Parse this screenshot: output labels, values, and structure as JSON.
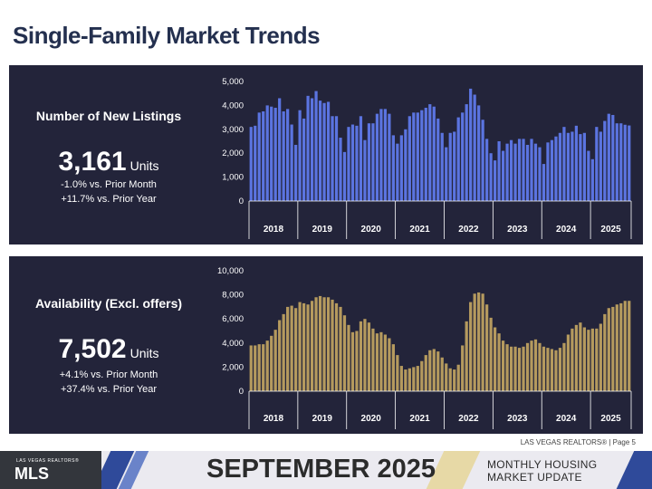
{
  "page_title": "Single-Family Market Trends",
  "panels": {
    "listings": {
      "label": "Number of New Listings",
      "value": "3,161",
      "unit": "Units",
      "change_month": "-1.0% vs. Prior Month",
      "change_year": "+11.7% vs. Prior Year"
    },
    "availability": {
      "label": "Availability (Excl. offers)",
      "value": "7,502",
      "unit": "Units",
      "change_month": "+4.1% vs. Prior Month",
      "change_year": "+37.4% vs. Prior Year"
    }
  },
  "footer": {
    "credit": "LAS VEGAS REALTORS® | Page 5",
    "logo_small": "LAS VEGAS REALTORS®",
    "logo_text": "MLS",
    "month": "SEPTEMBER 2025",
    "update_line1": "MONTHLY HOUSING",
    "update_line2": "MARKET UPDATE"
  },
  "colors": {
    "panel_bg": "#23243a",
    "listings_bar": "#5b74e0",
    "availability_bar": "#b59a5e",
    "title": "#24304f"
  },
  "chart_data": [
    {
      "type": "bar",
      "title": "Number of New Listings",
      "ylim": [
        0,
        5000
      ],
      "yticks": [
        "5,000",
        "4,000",
        "3,000",
        "2,000",
        "1,000",
        "0"
      ],
      "ytick_values": [
        5000,
        4000,
        3000,
        2000,
        1000,
        0
      ],
      "year_labels": [
        "2018",
        "2019",
        "2020",
        "2021",
        "2022",
        "2023",
        "2024",
        "2025"
      ],
      "values": [
        3100,
        3150,
        3700,
        3750,
        4000,
        3950,
        3900,
        4300,
        3750,
        3850,
        3200,
        2350,
        3800,
        3450,
        4400,
        4300,
        4600,
        4200,
        4100,
        4150,
        3550,
        3550,
        2650,
        2050,
        3100,
        3200,
        3150,
        3550,
        2550,
        3250,
        3250,
        3650,
        3850,
        3850,
        3650,
        2750,
        2400,
        2750,
        3000,
        3550,
        3700,
        3700,
        3800,
        3900,
        4050,
        3950,
        3450,
        2850,
        2250,
        2850,
        2900,
        3500,
        3700,
        4050,
        4700,
        4450,
        4000,
        3400,
        2600,
        2000,
        1700,
        2500,
        2100,
        2400,
        2550,
        2400,
        2600,
        2600,
        2350,
        2600,
        2400,
        2250,
        1550,
        2450,
        2550,
        2700,
        2850,
        3100,
        2850,
        2900,
        3150,
        2800,
        2850,
        2100,
        1750,
        3100,
        2900,
        3350,
        3650,
        3600,
        3250,
        3250,
        3190,
        3161
      ]
    },
    {
      "type": "bar",
      "title": "Availability (Excl. offers)",
      "ylim": [
        0,
        10000
      ],
      "yticks": [
        "10,000",
        "8,000",
        "6,000",
        "4,000",
        "2,000",
        "0"
      ],
      "ytick_values": [
        10000,
        8000,
        6000,
        4000,
        2000,
        0
      ],
      "year_labels": [
        "2018",
        "2019",
        "2020",
        "2021",
        "2022",
        "2023",
        "2024",
        "2025"
      ],
      "values": [
        3800,
        3800,
        3900,
        3900,
        4200,
        4600,
        5100,
        5900,
        6400,
        7000,
        7100,
        6900,
        7400,
        7300,
        7200,
        7500,
        7800,
        7900,
        7800,
        7800,
        7600,
        7300,
        7000,
        6300,
        5500,
        4900,
        5000,
        5800,
        6000,
        5700,
        5200,
        4800,
        4900,
        4700,
        4400,
        3900,
        3000,
        2100,
        1800,
        1900,
        2000,
        2100,
        2500,
        3000,
        3400,
        3500,
        3300,
        2800,
        2300,
        1900,
        1800,
        2200,
        3800,
        5800,
        7400,
        8100,
        8200,
        8100,
        7200,
        6100,
        5300,
        4800,
        4200,
        3900,
        3700,
        3700,
        3600,
        3700,
        4000,
        4200,
        4300,
        4000,
        3700,
        3600,
        3500,
        3400,
        3600,
        4000,
        4700,
        5200,
        5500,
        5700,
        5300,
        5100,
        5200,
        5200,
        5600,
        6400,
        6900,
        7000,
        7200,
        7300,
        7500,
        7502
      ]
    }
  ]
}
